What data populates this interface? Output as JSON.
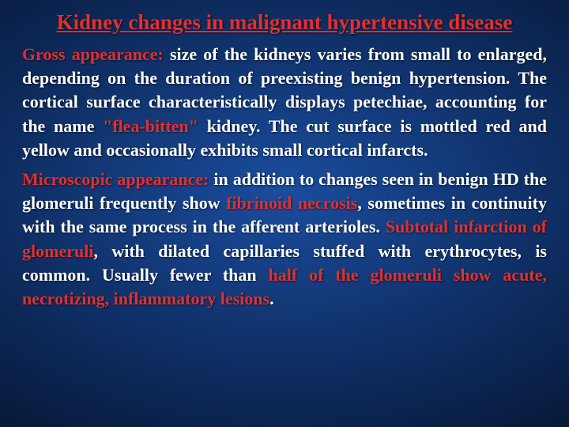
{
  "colors": {
    "title": "#e03030",
    "highlight": "#e03030",
    "text": "#ffffff",
    "bg_center": "#1a4d9e",
    "bg_edge": "#020810"
  },
  "typography": {
    "family": "Times New Roman",
    "title_fontsize": 27,
    "body_fontsize": 22,
    "weight": "bold",
    "title_align": "center",
    "body_align": "justify",
    "title_underline": true,
    "line_height": 1.38
  },
  "title": "Kidney changes in malignant hypertensive disease",
  "p1": {
    "lead": "Gross appearance:",
    "a": " size of the kidneys varies from small to enlarged, depending on the duration of preexisting benign hypertension. The cortical surface characteristically displays petechiae, accounting for the name ",
    "hl1": "\"flea-bitten\"",
    "b": " kidney. The cut surface is mottled red and yellow and occasionally exhibits small cortical infarcts."
  },
  "p2": {
    "lead": "Microscopic appearance:",
    "a": " in addition to changes seen in benign HD the glomeruli frequently show ",
    "hl1": "fibrinoid necrosis",
    "b": ", sometimes in continuity with the same process in the afferent arterioles. ",
    "hl2": "Subtotal infarction of glomeruli",
    "c": ", with dilated capillaries stuffed with erythrocytes, is common. Usually fewer than ",
    "hl3": "half of the glomeruli show acute, necrotizing, inflammatory lesions",
    "d": "."
  }
}
